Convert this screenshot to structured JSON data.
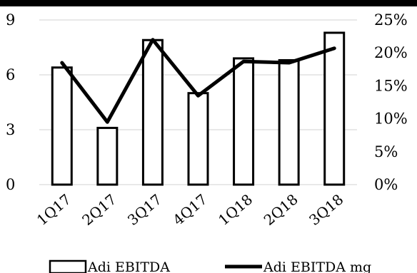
{
  "chart_data": {
    "type": "bar+line",
    "categories": [
      "1Q17",
      "2Q17",
      "3Q17",
      "4Q17",
      "1Q18",
      "2Q18",
      "3Q18"
    ],
    "series": [
      {
        "name": "Adi EBITDA",
        "type": "bar",
        "axis": "left",
        "values": [
          6.4,
          3.1,
          7.9,
          5.0,
          6.9,
          6.8,
          8.3
        ]
      },
      {
        "name": "Adi EBITDA mg",
        "type": "line",
        "axis": "right",
        "values": [
          18.5,
          9.5,
          22.0,
          13.5,
          18.7,
          18.5,
          20.7
        ]
      }
    ],
    "y_left": {
      "ylim": [
        0,
        9
      ],
      "ticks": [
        "0",
        "3",
        "6",
        "9"
      ]
    },
    "y_right": {
      "ylim": [
        0,
        25
      ],
      "ticks": [
        "0%",
        "5%",
        "10%",
        "15%",
        "20%",
        "25%"
      ]
    },
    "grid": true,
    "legend": "bottom",
    "colors": {
      "bar_fill": "#ffffff",
      "bar_stroke": "#000000",
      "line": "#000000",
      "grid": "#d9d9d9",
      "top_band": "#000000"
    }
  }
}
